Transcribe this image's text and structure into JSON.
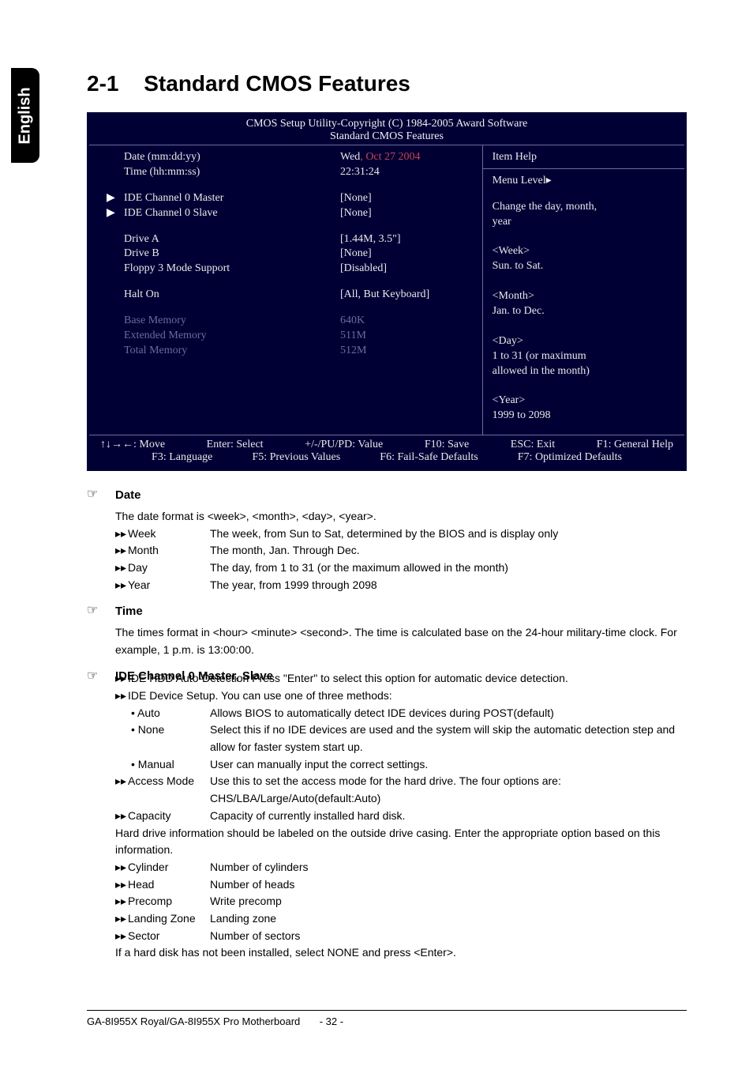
{
  "sideTab": "English",
  "section": {
    "number": "2-1",
    "title": "Standard CMOS Features"
  },
  "bios": {
    "header1": "CMOS Setup Utility-Copyright (C) 1984-2005 Award Software",
    "header2": "Standard CMOS Features",
    "rows": [
      {
        "label": "Date (mm:dd:yy)",
        "value_pre": "Wed",
        "value_red": ", Oct 27 2004",
        "arrow": false
      },
      {
        "label": "Time (hh:mm:ss)",
        "value": "22:31:24",
        "arrow": false
      },
      {
        "spacer": true
      },
      {
        "label": "IDE Channel 0 Master",
        "value": "[None]",
        "arrow": true
      },
      {
        "label": "IDE Channel 0 Slave",
        "value": "[None]",
        "arrow": true
      },
      {
        "spacer": true
      },
      {
        "label": "Drive A",
        "value": "[1.44M, 3.5\"]",
        "arrow": false
      },
      {
        "label": "Drive B",
        "value": "[None]",
        "arrow": false
      },
      {
        "label": "Floppy 3 Mode Support",
        "value": "[Disabled]",
        "arrow": false
      },
      {
        "spacer": true
      },
      {
        "label": "Halt On",
        "value": "[All, But Keyboard]",
        "arrow": false
      },
      {
        "spacer": true
      },
      {
        "label": "Base Memory",
        "value": "640K",
        "arrow": false,
        "dim": true
      },
      {
        "label": "Extended Memory",
        "value": "511M",
        "arrow": false,
        "dim": true
      },
      {
        "label": "Total Memory",
        "value": "512M",
        "arrow": false,
        "dim": true
      }
    ],
    "help": {
      "title": "Item Help",
      "menuLevel": "Menu Level",
      "lines": [
        "Change the day, month,",
        "year",
        "",
        "<Week>",
        "Sun. to Sat.",
        "",
        "<Month>",
        "Jan. to Dec.",
        "",
        "<Day>",
        "1 to 31 (or maximum",
        "allowed in the month)",
        "",
        "<Year>",
        "1999 to 2098"
      ]
    },
    "footer": {
      "line1": [
        "↑↓→←: Move",
        "Enter: Select",
        "+/-/PU/PD: Value",
        "F10: Save",
        "ESC: Exit",
        "F1: General Help"
      ],
      "line2": [
        "F3: Language",
        "F5: Previous Values",
        "F6: Fail-Safe Defaults",
        "F7: Optimized Defaults"
      ]
    }
  },
  "doc": {
    "date": {
      "title": "Date",
      "intro": "The date format is <week>, <month>, <day>, <year>.",
      "items": [
        {
          "k": "Week",
          "v": "The week, from Sun to Sat, determined by the BIOS and is display only"
        },
        {
          "k": "Month",
          "v": "The month, Jan. Through Dec."
        },
        {
          "k": "Day",
          "v": "The day, from 1 to 31 (or the maximum allowed in the month)"
        },
        {
          "k": "Year",
          "v": "The year, from 1999 through 2098"
        }
      ]
    },
    "time": {
      "title": "Time",
      "body": "The times format in <hour> <minute> <second>. The time is calculated base on the 24-hour military-time clock. For example, 1 p.m. is 13:00:00."
    },
    "ide": {
      "title": "IDE Channel 0 Master, Slave",
      "l1": "IDE HDD Auto-Detection  Press \"Enter\" to select this option for automatic device detection.",
      "l2": "IDE Device Setup.  You can use one of three methods:",
      "methods": [
        {
          "k": "Auto",
          "v": "Allows BIOS to automatically detect IDE devices during POST(default)"
        },
        {
          "k": "None",
          "v": "Select this if no IDE devices are used and the system will skip the automatic detection step and allow for faster system start up."
        },
        {
          "k": "Manual",
          "v": "User can manually input the correct settings."
        }
      ],
      "access": {
        "k": "Access Mode",
        "v": "Use this to set the access mode for the hard drive. The four options are: CHS/LBA/Large/Auto(default:Auto)"
      },
      "capacity": {
        "k": "Capacity",
        "v": "Capacity of currently installed hard disk."
      },
      "hdnote": "Hard drive information should be labeled on the outside drive casing.  Enter the appropriate option based on this information.",
      "props": [
        {
          "k": "Cylinder",
          "v": "Number of cylinders"
        },
        {
          "k": "Head",
          "v": "Number of heads"
        },
        {
          "k": "Precomp",
          "v": "Write precomp"
        },
        {
          "k": "Landing Zone",
          "v": "Landing zone"
        },
        {
          "k": "Sector",
          "v": "Number of sectors"
        }
      ],
      "tail": "If a hard disk has not been installed, select NONE and press <Enter>."
    }
  },
  "pageFooter": {
    "left": "GA-8I955X Royal/GA-8I955X Pro Motherboard",
    "page": "- 32 -"
  }
}
